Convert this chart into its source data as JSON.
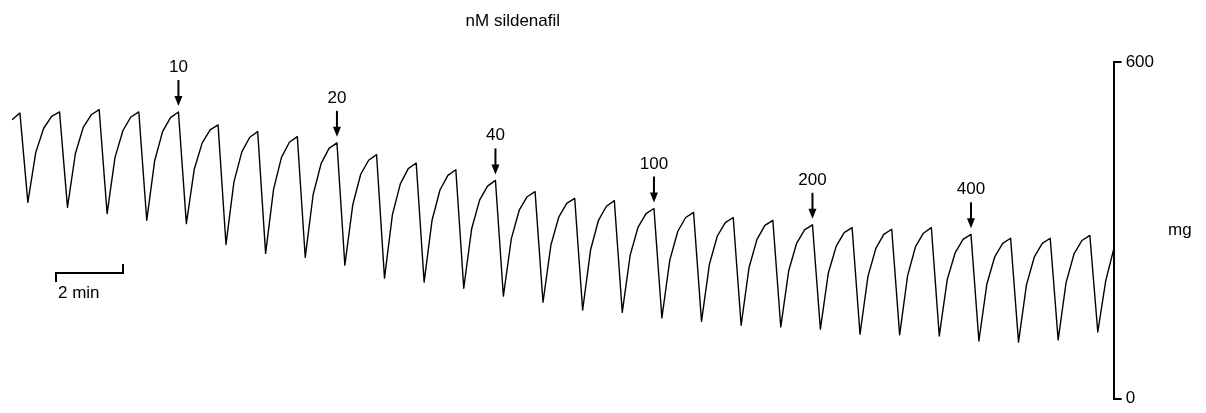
{
  "chart_data": {
    "type": "line",
    "title": "nM sildenafil",
    "xlabel": "2 min",
    "ylabel": "mg",
    "categories": [
      null,
      null,
      null,
      null,
      null,
      null,
      null,
      null,
      null,
      null,
      null,
      null,
      null,
      null,
      null,
      null,
      null,
      null,
      null,
      null,
      null,
      null,
      null,
      null,
      null,
      null,
      null,
      null,
      null,
      null,
      null,
      null,
      null,
      null,
      null,
      null,
      null,
      null,
      null,
      null,
      null,
      null,
      null,
      null,
      null,
      null,
      null,
      null,
      null,
      null,
      null,
      null,
      null,
      null,
      null,
      null,
      null,
      null,
      null,
      null,
      null,
      null,
      null,
      null,
      null,
      null,
      null,
      null,
      null,
      null,
      null,
      null,
      null,
      null,
      null,
      null,
      null,
      null,
      null,
      null,
      null,
      null,
      null,
      null,
      null,
      null,
      null,
      null,
      null,
      null,
      null,
      null,
      null,
      null,
      null,
      null,
      null,
      null,
      null,
      null,
      null,
      null,
      null,
      null,
      null,
      null,
      null,
      null,
      null,
      null,
      null,
      null,
      null,
      null,
      null,
      null,
      null,
      null,
      null,
      null,
      null,
      null,
      null,
      null,
      null,
      null,
      null,
      null,
      null,
      null,
      null,
      null,
      null,
      null,
      null,
      null,
      null,
      null,
      null,
      null
    ],
    "series": [
      {
        "color": "#000000",
        "values": [
          497,
          509,
          350,
          439,
          482,
          503,
          511,
          341,
          437,
          484,
          506,
          515,
          330,
          430,
          478,
          502,
          511,
          318,
          424,
          476,
          501,
          511,
          312,
          409,
          456,
          479,
          488,
          275,
          386,
          440,
          466,
          476,
          259,
          373,
          430,
          457,
          467,
          252,
          364,
          419,
          446,
          456,
          238,
          346,
          400,
          425,
          435,
          215,
          328,
          383,
          410,
          420,
          208,
          318,
          372,
          398,
          408,
          197,
          303,
          354,
          379,
          389,
          183,
          285,
          336,
          360,
          369,
          172,
          274,
          324,
          348,
          357,
          158,
          265,
          318,
          343,
          353,
          154,
          256,
          306,
          330,
          339,
          144,
          247,
          298,
          323,
          332,
          138,
          240,
          290,
          314,
          323,
          131,
          234,
          284,
          309,
          318,
          128,
          228,
          277,
          301,
          310,
          124,
          224,
          272,
          296,
          305,
          115,
          218,
          268,
          293,
          302,
          114,
          219,
          271,
          295,
          305,
          112,
          212,
          260,
          284,
          293,
          103,
          204,
          253,
          277,
          286,
          101,
          203,
          253,
          277,
          286,
          105,
          207,
          258,
          282,
          291,
          119,
          210,
          266
        ]
      }
    ],
    "ylim": [
      0,
      600
    ],
    "yticks": [
      0,
      600
    ],
    "annotations": [
      {
        "text": "10",
        "y": 511
      },
      {
        "text": "20",
        "y": 456
      },
      {
        "text": "40",
        "y": 389
      },
      {
        "text": "100",
        "y": 339
      },
      {
        "text": "200",
        "y": 310
      },
      {
        "text": "400",
        "y": 293
      }
    ],
    "marker": "none",
    "legend": false,
    "tick_labels": "y"
  }
}
